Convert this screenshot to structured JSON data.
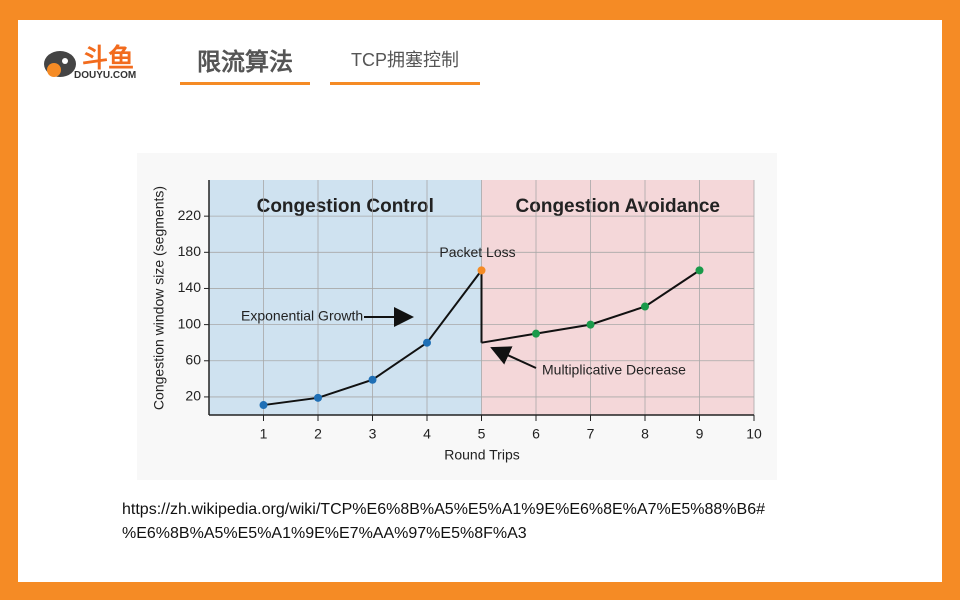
{
  "header": {
    "brand": "斗鱼",
    "domain": "DOUYU.COM",
    "section": "限流算法",
    "topic": "TCP拥塞控制"
  },
  "source": [
    "https://zh.wikipedia.org/wiki/TCP%E6%8B%A5%E5%A1%9E%E6%8E%A7%E5%88%B6#",
    "%E6%8B%A5%E5%A1%9E%E7%AA%97%E5%8F%A3"
  ],
  "chart_data": {
    "type": "line",
    "x_label": "Round Trips",
    "y_label": "Congestion window size (segments)",
    "xlim": [
      0,
      10
    ],
    "xticks": [
      1,
      2,
      3,
      4,
      5,
      6,
      7,
      8,
      9,
      10
    ],
    "ylim": [
      0,
      260
    ],
    "yticks": [
      20,
      60,
      100,
      140,
      180,
      220
    ],
    "grid": true,
    "series": [
      {
        "name": "Congestion Control",
        "color": "#1f6fb5",
        "region_color": "#cfe2f0",
        "span": [
          0,
          5
        ],
        "x": [
          1,
          2,
          3,
          4,
          5
        ],
        "values": [
          11,
          19,
          39,
          80,
          160
        ]
      },
      {
        "name": "Congestion Avoidance",
        "color": "#1a9a4a",
        "region_color": "#f4d7d9",
        "span": [
          5,
          10
        ],
        "x": [
          5,
          6,
          7,
          8,
          9
        ],
        "values": [
          80,
          90,
          100,
          120,
          160
        ]
      }
    ],
    "line_color": "#111111",
    "packet_loss_color": "#f58b25",
    "annotations": [
      "Packet Loss",
      "Exponential Growth",
      "Multiplicative Decrease"
    ]
  }
}
